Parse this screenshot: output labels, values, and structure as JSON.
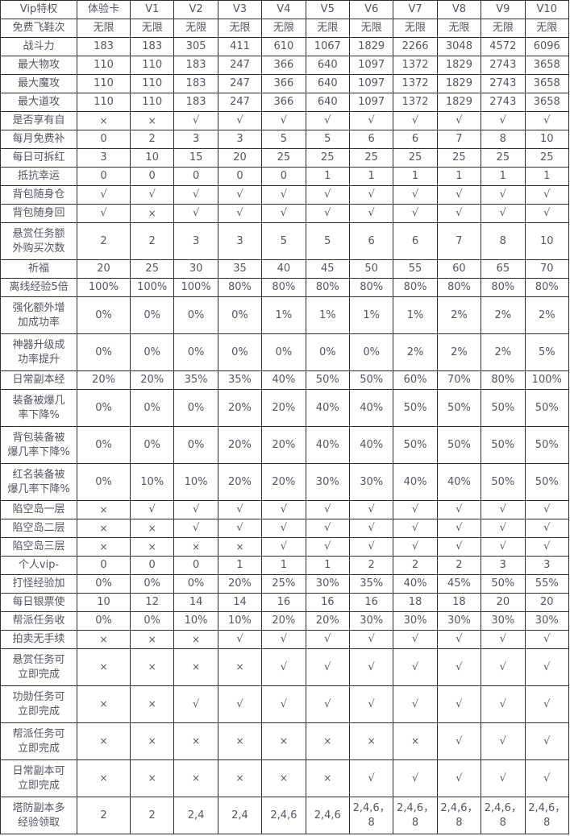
{
  "page": {
    "background": "#ffffff",
    "border_color": "#2c2f2e",
    "text_color": "#53575e"
  },
  "table": {
    "columns": [
      "Vip特权",
      "体验卡",
      "V1",
      "V2",
      "V3",
      "V4",
      "V5",
      "V6",
      "V7",
      "V8",
      "V9",
      "V10"
    ],
    "rows": [
      {
        "label": "免费飞鞋次",
        "tall": false,
        "values": [
          "无限",
          "无限",
          "无限",
          "无限",
          "无限",
          "无限",
          "无限",
          "无限",
          "无限",
          "无限",
          "无限"
        ]
      },
      {
        "label": "战斗力",
        "tall": false,
        "values": [
          "183",
          "183",
          "305",
          "411",
          "610",
          "1067",
          "1829",
          "2266",
          "3048",
          "4572",
          "6096"
        ]
      },
      {
        "label": "最大物攻",
        "tall": false,
        "values": [
          "110",
          "110",
          "183",
          "247",
          "366",
          "640",
          "1097",
          "1372",
          "1829",
          "2743",
          "3658"
        ]
      },
      {
        "label": "最大魔攻",
        "tall": false,
        "values": [
          "110",
          "110",
          "183",
          "247",
          "366",
          "640",
          "1097",
          "1372",
          "1829",
          "2743",
          "3658"
        ]
      },
      {
        "label": "最大道攻",
        "tall": false,
        "values": [
          "110",
          "110",
          "183",
          "247",
          "366",
          "640",
          "1097",
          "1372",
          "1829",
          "2743",
          "3658"
        ]
      },
      {
        "label": "是否享有自",
        "tall": false,
        "values": [
          "×",
          "×",
          "√",
          "√",
          "√",
          "√",
          "√",
          "√",
          "√",
          "√",
          "√"
        ]
      },
      {
        "label": "每月免费补",
        "tall": false,
        "values": [
          "0",
          "2",
          "3",
          "3",
          "5",
          "5",
          "6",
          "6",
          "7",
          "8",
          "10"
        ]
      },
      {
        "label": "每日可拆红",
        "tall": false,
        "values": [
          "3",
          "10",
          "15",
          "20",
          "25",
          "25",
          "25",
          "25",
          "25",
          "25",
          "25"
        ]
      },
      {
        "label": "抵抗幸运",
        "tall": false,
        "values": [
          "0",
          "0",
          "0",
          "0",
          "0",
          "1",
          "1",
          "1",
          "1",
          "1",
          "1"
        ]
      },
      {
        "label": "背包随身仓",
        "tall": false,
        "values": [
          "√",
          "√",
          "√",
          "√",
          "√",
          "√",
          "√",
          "√",
          "√",
          "√",
          "√"
        ]
      },
      {
        "label": "背包随身回",
        "tall": false,
        "values": [
          "√",
          "×",
          "√",
          "√",
          "√",
          "√",
          "√",
          "√",
          "√",
          "√",
          "√"
        ]
      },
      {
        "label": "悬赏任务额\n外购买次数",
        "tall": true,
        "values": [
          "2",
          "2",
          "3",
          "3",
          "5",
          "5",
          "6",
          "6",
          "7",
          "8",
          "10"
        ]
      },
      {
        "label": "祈福",
        "tall": false,
        "values": [
          "20",
          "25",
          "30",
          "35",
          "40",
          "45",
          "50",
          "55",
          "60",
          "65",
          "70"
        ]
      },
      {
        "label": "离线经验5倍",
        "tall": false,
        "values": [
          "100%",
          "100%",
          "100%",
          "80%",
          "80%",
          "80%",
          "80%",
          "80%",
          "80%",
          "80%",
          "80%"
        ]
      },
      {
        "label": "强化额外增\n加成功率",
        "tall": true,
        "values": [
          "0%",
          "0%",
          "0%",
          "0%",
          "1%",
          "1%",
          "1%",
          "1%",
          "2%",
          "2%",
          "2%"
        ]
      },
      {
        "label": "神器升级成\n功率提升",
        "tall": true,
        "values": [
          "0%",
          "0%",
          "0%",
          "0%",
          "0%",
          "0%",
          "0%",
          "2%",
          "2%",
          "2%",
          "5%"
        ]
      },
      {
        "label": "日常副本经",
        "tall": false,
        "values": [
          "20%",
          "20%",
          "35%",
          "35%",
          "40%",
          "50%",
          "50%",
          "60%",
          "70%",
          "80%",
          "100%"
        ]
      },
      {
        "label": "装备被爆几\n率下降%",
        "tall": true,
        "values": [
          "0%",
          "0%",
          "0%",
          "20%",
          "20%",
          "40%",
          "40%",
          "50%",
          "50%",
          "50%",
          "50%"
        ]
      },
      {
        "label": "背包装备被\n爆几率下降%",
        "tall": true,
        "values": [
          "0%",
          "0%",
          "0%",
          "20%",
          "20%",
          "40%",
          "40%",
          "50%",
          "50%",
          "50%",
          "50%"
        ]
      },
      {
        "label": "红名装备被\n爆几率下降%",
        "tall": true,
        "values": [
          "0%",
          "10%",
          "10%",
          "20%",
          "20%",
          "30%",
          "30%",
          "40%",
          "40%",
          "50%",
          "50%"
        ]
      },
      {
        "label": "陷空岛一层",
        "tall": false,
        "values": [
          "×",
          "√",
          "√",
          "√",
          "√",
          "√",
          "√",
          "√",
          "√",
          "√",
          "√"
        ]
      },
      {
        "label": "陷空岛二层",
        "tall": false,
        "values": [
          "×",
          "×",
          "√",
          "√",
          "√",
          "√",
          "√",
          "√",
          "√",
          "√",
          "√"
        ]
      },
      {
        "label": "陷空岛三层",
        "tall": false,
        "values": [
          "×",
          "×",
          "×",
          "×",
          "√",
          "√",
          "√",
          "√",
          "√",
          "√",
          "√"
        ]
      },
      {
        "label": "个人vip-",
        "tall": false,
        "values": [
          "0",
          "0",
          "0",
          "1",
          "1",
          "1",
          "2",
          "2",
          "2",
          "3",
          "3"
        ]
      },
      {
        "label": "打怪经验加",
        "tall": false,
        "values": [
          "0%",
          "0%",
          "0%",
          "20%",
          "25%",
          "30%",
          "35%",
          "40%",
          "45%",
          "50%",
          "55%"
        ]
      },
      {
        "label": "每日银票使",
        "tall": false,
        "values": [
          "10",
          "12",
          "14",
          "14",
          "16",
          "16",
          "16",
          "18",
          "18",
          "20",
          "20"
        ]
      },
      {
        "label": "帮派任务收",
        "tall": false,
        "values": [
          "0%",
          "0%",
          "10%",
          "10%",
          "20%",
          "20%",
          "30%",
          "30%",
          "30%",
          "30%",
          "30%"
        ]
      },
      {
        "label": "拍卖无手续",
        "tall": false,
        "values": [
          "×",
          "×",
          "×",
          "√",
          "√",
          "√",
          "√",
          "√",
          "√",
          "√",
          "√"
        ]
      },
      {
        "label": "悬赏任务可\n立即完成",
        "tall": true,
        "values": [
          "×",
          "×",
          "×",
          "×",
          "√",
          "√",
          "√",
          "√",
          "√",
          "√",
          "√"
        ]
      },
      {
        "label": "功勋任务可\n立即完成",
        "tall": true,
        "values": [
          "×",
          "×",
          "√",
          "√",
          "√",
          "√",
          "√",
          "√",
          "√",
          "√",
          "√"
        ]
      },
      {
        "label": "帮派任务可\n立即完成",
        "tall": true,
        "values": [
          "×",
          "×",
          "×",
          "×",
          "×",
          "×",
          "×",
          "×",
          "√",
          "√",
          "√"
        ]
      },
      {
        "label": "日常副本可\n立即完成",
        "tall": true,
        "values": [
          "×",
          "×",
          "×",
          "×",
          "×",
          "×",
          "√",
          "√",
          "√",
          "√",
          "√"
        ]
      },
      {
        "label": "塔防副本多\n经验领取",
        "tall": true,
        "values": [
          "2",
          "2",
          "2,4",
          "2,4",
          "2,4,6",
          "2,4,6",
          "2,4,6，\n8",
          "2,4,6，\n8",
          "2,4,6，\n8",
          "2,4,6，\n8",
          "2,4,6，\n8"
        ]
      }
    ]
  }
}
